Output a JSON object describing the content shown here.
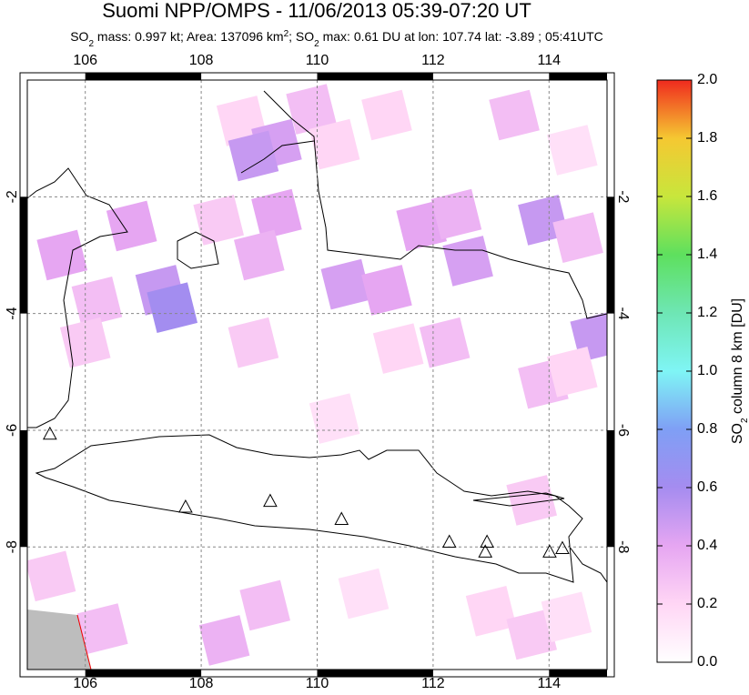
{
  "chart_data": {
    "type": "map",
    "title": "Suomi NPP/OMPS - 11/06/2013 05:39-07:20 UT",
    "subtitle": [
      "SO",
      "2",
      " mass: 0.997 kt; Area: 137096 km",
      "2",
      "; SO",
      "2",
      " max: 0.61 DU at lon: 107.74 lat: -3.89 ; 05:41UTC"
    ],
    "xlim": [
      105,
      115
    ],
    "ylim": [
      -10.1,
      0
    ],
    "xticks": [
      106,
      108,
      110,
      112,
      114
    ],
    "yticks": [
      -2,
      -4,
      -6,
      -8
    ],
    "grid": true,
    "colorbar": {
      "label": [
        "SO",
        "2",
        " column 8 km [DU]"
      ],
      "lim": [
        0,
        2
      ],
      "ticks": [
        {
          "value": 0,
          "label": "0.0"
        },
        0.2,
        0.4,
        0.6,
        0.8,
        {
          "value": 1,
          "label": "1.0"
        },
        1.2,
        1.4,
        1.6,
        1.8,
        {
          "value": 2,
          "label": "2.0"
        }
      ],
      "colors": [
        "#ffffff",
        "#ffd6f5",
        "#e6a6f2",
        "#a58cf0",
        "#7f9ff5",
        "#7ff5f5",
        "#6ee6b4",
        "#5ee05e",
        "#c8e63c",
        "#f5c832",
        "#f02a1e"
      ]
    },
    "cells": [
      {
        "lon": 108.7,
        "lat": -0.7,
        "value": 0.2
      },
      {
        "lon": 109.9,
        "lat": -0.5,
        "value": 0.3
      },
      {
        "lon": 109.3,
        "lat": -1.1,
        "value": 0.45
      },
      {
        "lon": 108.9,
        "lat": -1.3,
        "value": 0.5
      },
      {
        "lon": 110.3,
        "lat": -1.1,
        "value": 0.2
      },
      {
        "lon": 111.2,
        "lat": -0.6,
        "value": 0.2
      },
      {
        "lon": 113.4,
        "lat": -0.6,
        "value": 0.3
      },
      {
        "lon": 114.4,
        "lat": -1.2,
        "value": 0.15
      },
      {
        "lon": 109.3,
        "lat": -2.3,
        "value": 0.4
      },
      {
        "lon": 108.3,
        "lat": -2.4,
        "value": 0.25
      },
      {
        "lon": 106.8,
        "lat": -2.5,
        "value": 0.4
      },
      {
        "lon": 105.6,
        "lat": -3.0,
        "value": 0.4
      },
      {
        "lon": 107.3,
        "lat": -3.6,
        "value": 0.5
      },
      {
        "lon": 107.5,
        "lat": -3.9,
        "value": 0.61
      },
      {
        "lon": 106.2,
        "lat": -3.8,
        "value": 0.3
      },
      {
        "lon": 106.0,
        "lat": -4.5,
        "value": 0.25
      },
      {
        "lon": 109.0,
        "lat": -3.0,
        "value": 0.35
      },
      {
        "lon": 110.5,
        "lat": -3.5,
        "value": 0.45
      },
      {
        "lon": 111.2,
        "lat": -3.6,
        "value": 0.4
      },
      {
        "lon": 111.8,
        "lat": -2.5,
        "value": 0.4
      },
      {
        "lon": 112.4,
        "lat": -2.3,
        "value": 0.35
      },
      {
        "lon": 112.6,
        "lat": -3.1,
        "value": 0.45
      },
      {
        "lon": 113.9,
        "lat": -2.4,
        "value": 0.5
      },
      {
        "lon": 114.5,
        "lat": -2.7,
        "value": 0.3
      },
      {
        "lon": 114.8,
        "lat": -4.4,
        "value": 0.5
      },
      {
        "lon": 112.2,
        "lat": -4.5,
        "value": 0.3
      },
      {
        "lon": 111.4,
        "lat": -4.6,
        "value": 0.2
      },
      {
        "lon": 113.9,
        "lat": -5.2,
        "value": 0.3
      },
      {
        "lon": 114.4,
        "lat": -5.0,
        "value": 0.2
      },
      {
        "lon": 113.7,
        "lat": -7.2,
        "value": 0.25
      },
      {
        "lon": 105.4,
        "lat": -8.5,
        "value": 0.25
      },
      {
        "lon": 106.3,
        "lat": -9.4,
        "value": 0.3
      },
      {
        "lon": 108.4,
        "lat": -9.6,
        "value": 0.35
      },
      {
        "lon": 109.1,
        "lat": -9.0,
        "value": 0.3
      },
      {
        "lon": 110.8,
        "lat": -8.8,
        "value": 0.15
      },
      {
        "lon": 113.0,
        "lat": -9.1,
        "value": 0.2
      },
      {
        "lon": 113.7,
        "lat": -9.5,
        "value": 0.25
      },
      {
        "lon": 114.3,
        "lat": -9.2,
        "value": 0.15
      },
      {
        "lon": 108.9,
        "lat": -4.5,
        "value": 0.25
      },
      {
        "lon": 110.3,
        "lat": -5.8,
        "value": 0.15
      }
    ],
    "volcanoes": [
      {
        "lon": 105.39,
        "lat": -6.06
      },
      {
        "lon": 107.73,
        "lat": -7.31
      },
      {
        "lon": 109.19,
        "lat": -7.21
      },
      {
        "lon": 110.42,
        "lat": -7.52
      },
      {
        "lon": 112.28,
        "lat": -7.91
      },
      {
        "lon": 112.93,
        "lat": -7.91
      },
      {
        "lon": 112.9,
        "lat": -8.08
      },
      {
        "lon": 114.01,
        "lat": -8.08
      },
      {
        "lon": 114.23,
        "lat": -8.02
      }
    ]
  }
}
